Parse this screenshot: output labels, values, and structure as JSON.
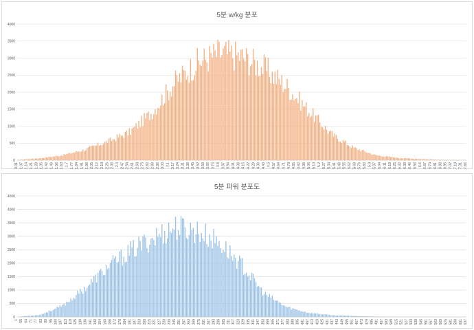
{
  "chart_data": [
    {
      "type": "bar",
      "title": "5분 w/kg 분포",
      "xlabel": "",
      "ylabel": "",
      "ylim": [
        0,
        4000
      ],
      "yticks": [
        0,
        500,
        1000,
        1500,
        2000,
        2500,
        3000,
        3500,
        4000
      ],
      "grid": true,
      "legend": "none",
      "color": "#f4b183",
      "x_tick_labels": [
        "0.01",
        "1.07",
        "1.14",
        "1.21",
        "1.28",
        "1.35",
        "1.42",
        "1.49",
        "1.56",
        "1.63",
        "1.7",
        "1.77",
        "1.84",
        "1.91",
        "1.98",
        "2.05",
        "2.12",
        "2.19",
        "2.26",
        "2.33",
        "2.4",
        "2.47",
        "2.54",
        "2.61",
        "2.68",
        "2.75",
        "2.82",
        "2.89",
        "2.96",
        "3.03",
        "3.1",
        "3.17",
        "3.24",
        "3.31",
        "3.38",
        "3.45",
        "3.52",
        "3.59",
        "3.66",
        "3.73",
        "3.8",
        "3.87",
        "3.94",
        "4.01",
        "4.08",
        "4.15",
        "4.22",
        "4.29",
        "4.36",
        "4.43",
        "4.5",
        "4.57",
        "4.64",
        "4.71",
        "4.78",
        "4.85",
        "4.92",
        "4.99",
        "5.06",
        "5.13",
        "5.2",
        "5.27",
        "5.34",
        "5.41",
        "5.48",
        "5.55",
        "5.62",
        "5.69",
        "5.76",
        "5.83",
        "5.9",
        "5.97",
        "6.04",
        "6.11",
        "6.18",
        "6.25",
        "6.32",
        "6.39",
        "6.46",
        "6.53",
        "6.6",
        "6.67",
        "6.74",
        "6.81",
        "6.88",
        "6.95",
        "7.02",
        "7.19",
        "7.31",
        "7.66"
      ],
      "envelope": {
        "x": [
          0,
          0.05,
          0.1,
          0.15,
          0.2,
          0.25,
          0.3,
          0.35,
          0.4,
          0.45,
          0.5,
          0.55,
          0.6,
          0.65,
          0.7,
          0.75,
          0.8,
          0.85,
          0.9,
          0.95,
          1.0
        ],
        "y": [
          10,
          60,
          150,
          320,
          560,
          850,
          1450,
          2350,
          2950,
          3250,
          3150,
          2800,
          2250,
          1500,
          800,
          380,
          150,
          70,
          35,
          12,
          5
        ]
      }
    },
    {
      "type": "bar",
      "title": "5분 파워 분포도",
      "xlabel": "",
      "ylabel": "",
      "ylim": [
        0,
        4500
      ],
      "yticks": [
        0,
        500,
        1000,
        1500,
        2000,
        2500,
        3000,
        3500,
        4000,
        4500
      ],
      "grid": true,
      "legend": "none",
      "color": "#9dc3e6",
      "x_tick_labels": [
        "1",
        "55",
        "64",
        "71",
        "77",
        "83",
        "89",
        "95",
        "100",
        "107",
        "113",
        "119",
        "125",
        "130",
        "136",
        "141",
        "148",
        "154",
        "160",
        "166",
        "172",
        "178",
        "184",
        "191",
        "197",
        "203",
        "209",
        "215",
        "221",
        "227",
        "233",
        "239",
        "245",
        "251",
        "257",
        "263",
        "269",
        "275",
        "281",
        "287",
        "293",
        "299",
        "305",
        "311",
        "317",
        "323",
        "329",
        "335",
        "341",
        "347",
        "353",
        "359",
        "365",
        "371",
        "377",
        "383",
        "389",
        "395",
        "401",
        "407",
        "413",
        "419",
        "425",
        "431",
        "437",
        "443",
        "449",
        "455",
        "461",
        "467",
        "473",
        "479",
        "485",
        "491",
        "497",
        "503",
        "509",
        "515",
        "521",
        "527",
        "533",
        "539",
        "545",
        "551",
        "557",
        "563",
        "569",
        "575",
        "581",
        "590",
        "601",
        "637"
      ],
      "envelope": {
        "x": [
          0,
          0.05,
          0.1,
          0.15,
          0.2,
          0.25,
          0.3,
          0.35,
          0.4,
          0.45,
          0.5,
          0.55,
          0.6,
          0.65,
          0.7,
          0.75,
          0.8,
          0.85,
          0.9,
          0.95,
          1.0
        ],
        "y": [
          5,
          80,
          420,
          1100,
          1900,
          2500,
          3000,
          3450,
          3300,
          2850,
          2000,
          900,
          380,
          160,
          70,
          35,
          15,
          8,
          4,
          2,
          1
        ]
      }
    }
  ]
}
